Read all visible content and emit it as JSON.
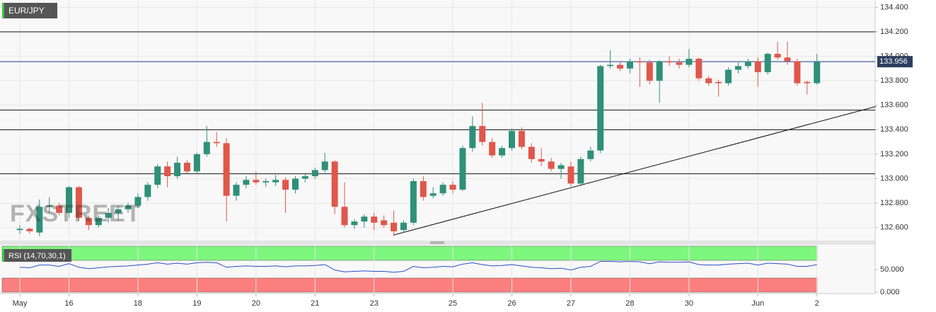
{
  "chart_data": {
    "type": "candlestick",
    "title": "EUR/JPY",
    "watermark": "FXSTREET",
    "categories": [
      "May",
      null,
      null,
      null,
      null,
      "16",
      null,
      null,
      null,
      null,
      null,
      null,
      "18",
      null,
      null,
      null,
      null,
      null,
      "19",
      null,
      null,
      null,
      null,
      null,
      "20",
      null,
      null,
      null,
      null,
      null,
      "21",
      null,
      null,
      null,
      null,
      null,
      "23",
      null,
      null,
      null,
      null,
      null,
      null,
      null,
      "25",
      null,
      null,
      null,
      null,
      null,
      "26",
      null,
      null,
      null,
      null,
      null,
      "27",
      null,
      null,
      null,
      null,
      null,
      "28",
      null,
      null,
      null,
      null,
      null,
      "30",
      null,
      null,
      null,
      null,
      null,
      null,
      "Jun",
      null,
      null,
      null,
      null,
      null,
      "2"
    ],
    "open": [
      132.58,
      132.59,
      132.56,
      132.77,
      132.78,
      132.72,
      132.93,
      132.68,
      132.62,
      132.68,
      132.72,
      132.75,
      132.78,
      132.85,
      132.95,
      133.1,
      133.02,
      133.13,
      133.06,
      133.2,
      133.3,
      133.29,
      132.86,
      132.95,
      132.99,
      132.97,
      132.97,
      132.99,
      132.91,
      133.0,
      133.02,
      133.07,
      133.14,
      132.77,
      132.62,
      132.65,
      132.69,
      132.66,
      132.64,
      132.58,
      132.64,
      132.98,
      132.86,
      132.88,
      132.95,
      132.91,
      133.25,
      133.43,
      133.3,
      133.19,
      133.25,
      133.39,
      133.26,
      133.16,
      133.14,
      133.08,
      133.1,
      132.96,
      133.16,
      133.23,
      133.92,
      133.93,
      133.9,
      133.96,
      133.95,
      133.8,
      133.96,
      133.95,
      133.93,
      133.98,
      133.82,
      133.79,
      133.78,
      133.89,
      133.92,
      133.96,
      133.87,
      134.02,
      133.99,
      133.96,
      133.79,
      133.78
    ],
    "high": [
      132.62,
      132.6,
      132.83,
      132.85,
      132.8,
      132.94,
      132.94,
      132.7,
      132.7,
      132.76,
      132.78,
      132.8,
      132.88,
      132.97,
      133.12,
      133.14,
      133.18,
      133.15,
      133.21,
      133.43,
      133.38,
      133.33,
      132.97,
      133.02,
      133.06,
      133.0,
      133.03,
      133.01,
      133.02,
      133.04,
      133.09,
      133.21,
      133.15,
      132.97,
      132.67,
      132.71,
      132.72,
      132.7,
      132.74,
      132.66,
      133.0,
      133.02,
      132.93,
      132.97,
      132.98,
      133.27,
      133.51,
      133.62,
      133.33,
      133.27,
      133.41,
      133.42,
      133.29,
      133.25,
      133.17,
      133.13,
      133.14,
      133.18,
      133.26,
      133.93,
      134.05,
      133.96,
      133.98,
      133.99,
      133.97,
      133.97,
      134.0,
      133.98,
      134.06,
      133.99,
      133.84,
      133.81,
      133.91,
      133.95,
      133.98,
      133.99,
      134.03,
      134.12,
      134.12,
      133.98,
      133.8,
      134.02
    ],
    "low": [
      132.55,
      132.55,
      132.53,
      132.72,
      132.7,
      132.68,
      132.66,
      132.58,
      132.6,
      132.64,
      132.66,
      132.72,
      132.76,
      132.82,
      132.92,
      132.93,
      133.0,
      133.04,
      133.04,
      133.18,
      133.26,
      132.65,
      132.82,
      132.92,
      132.95,
      132.93,
      132.94,
      132.72,
      132.88,
      132.97,
      133.0,
      133.05,
      132.71,
      132.6,
      132.59,
      132.6,
      132.58,
      132.6,
      132.53,
      132.56,
      132.62,
      132.82,
      132.84,
      132.86,
      132.88,
      132.9,
      133.22,
      133.27,
      133.17,
      133.17,
      133.23,
      133.24,
      133.13,
      133.1,
      133.06,
      133.0,
      132.94,
      132.94,
      133.14,
      133.21,
      133.9,
      133.88,
      133.86,
      133.75,
      133.77,
      133.62,
      133.92,
      133.9,
      133.91,
      133.8,
      133.76,
      133.67,
      133.76,
      133.86,
      133.9,
      133.75,
      133.85,
      133.97,
      133.93,
      133.76,
      133.69,
      133.77
    ],
    "close": [
      132.59,
      132.57,
      132.77,
      132.78,
      132.72,
      132.93,
      132.68,
      132.62,
      132.68,
      132.72,
      132.75,
      132.78,
      132.85,
      132.95,
      133.1,
      133.02,
      133.13,
      133.06,
      133.2,
      133.3,
      133.29,
      132.86,
      132.95,
      132.99,
      132.97,
      132.98,
      132.99,
      132.91,
      133.0,
      133.02,
      133.07,
      133.14,
      132.77,
      132.62,
      132.65,
      132.69,
      132.64,
      132.62,
      132.57,
      132.64,
      132.98,
      132.85,
      132.88,
      132.95,
      132.91,
      133.25,
      133.43,
      133.3,
      133.19,
      133.25,
      133.39,
      133.26,
      133.16,
      133.14,
      133.08,
      133.11,
      132.96,
      133.16,
      133.23,
      133.92,
      133.93,
      133.9,
      133.96,
      133.95,
      133.8,
      133.96,
      133.95,
      133.93,
      133.98,
      133.82,
      133.78,
      133.78,
      133.89,
      133.92,
      133.96,
      133.87,
      134.02,
      133.99,
      133.96,
      133.78,
      133.78,
      133.956
    ],
    "up_color": "#2f9079",
    "down_color": "#e0574b",
    "ylim": [
      132.5,
      134.46
    ],
    "yticks": [
      {
        "value": 132.6,
        "label": "132.600"
      },
      {
        "value": 132.8,
        "label": "132.800"
      },
      {
        "value": 133.0,
        "label": "133.000"
      },
      {
        "value": 133.2,
        "label": "133.200"
      },
      {
        "value": 133.4,
        "label": "133.400"
      },
      {
        "value": 133.6,
        "label": "133.600"
      },
      {
        "value": 133.8,
        "label": "133.800"
      },
      {
        "value": 134.0,
        "label": "134.000"
      },
      {
        "value": 134.2,
        "label": "134.200"
      },
      {
        "value": 134.4,
        "label": "134.400"
      }
    ],
    "grid": true,
    "last_price": {
      "value": 133.956,
      "label": "133.956"
    },
    "levels": [
      134.2,
      133.56,
      133.4,
      133.04
    ],
    "trendline": {
      "start": [
        38,
        132.54
      ],
      "end": [
        87,
        133.59
      ]
    },
    "rsi": {
      "label": "RSI (14,70,30,1)",
      "color": "#2b4fc7",
      "values": [
        55,
        54,
        60,
        60,
        57,
        63,
        55,
        52,
        54,
        56,
        57,
        58,
        60,
        62,
        65,
        62,
        64,
        62,
        65,
        66,
        65,
        55,
        57,
        58,
        57,
        57,
        58,
        56,
        58,
        58,
        59,
        61,
        49,
        45,
        46,
        47,
        46,
        46,
        44,
        46,
        57,
        54,
        55,
        57,
        56,
        62,
        65,
        61,
        58,
        59,
        61,
        58,
        55,
        54,
        52,
        53,
        49,
        55,
        57,
        68,
        68,
        67,
        68,
        67,
        63,
        67,
        66,
        66,
        67,
        61,
        60,
        60,
        62,
        63,
        64,
        60,
        64,
        63,
        62,
        57,
        57,
        61
      ],
      "ylim": [
        0,
        100
      ],
      "yticks": [
        {
          "value": 0,
          "label": "0.000"
        },
        {
          "value": 50,
          "label": "50.000"
        }
      ]
    }
  }
}
